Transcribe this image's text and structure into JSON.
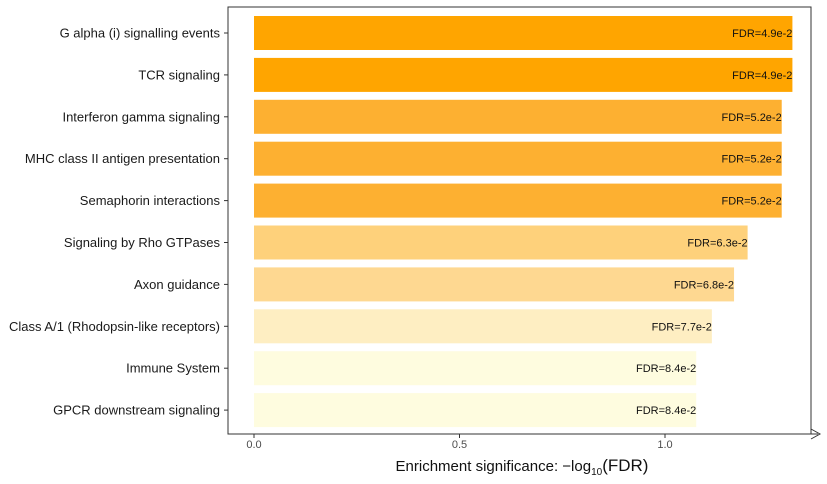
{
  "chart_data": {
    "type": "bar",
    "orientation": "horizontal",
    "categories": [
      "G alpha (i) signalling events",
      "TCR signaling",
      "Interferon gamma signaling",
      "MHC class II antigen presentation",
      "Semaphorin interactions",
      "Signaling by Rho GTPases",
      "Axon guidance",
      "Class A/1 (Rhodopsin-like receptors)",
      "Immune System",
      "GPCR downstream signaling"
    ],
    "values": [
      1.31,
      1.31,
      1.284,
      1.284,
      1.284,
      1.201,
      1.168,
      1.114,
      1.076,
      1.076
    ],
    "data_labels": [
      "FDR=4.9e-2",
      "FDR=4.9e-2",
      "FDR=5.2e-2",
      "FDR=5.2e-2",
      "FDR=5.2e-2",
      "FDR=6.3e-2",
      "FDR=6.8e-2",
      "FDR=7.7e-2",
      "FDR=8.4e-2",
      "FDR=8.4e-2"
    ],
    "colors": [
      "#ffa500",
      "#ffa500",
      "#fdb031",
      "#fdb031",
      "#fdb031",
      "#fed17b",
      "#fed891",
      "#feeec2",
      "#fefcdf",
      "#fefcdf"
    ],
    "xlabel": "Enrichment significance: ",
    "xlabel_math": {
      "prefix": "−log",
      "subscript": "10",
      "arg": "(FDR)"
    },
    "x_ticks": [
      "0.0",
      "0.5",
      "1.0"
    ],
    "x_tick_values": [
      0.0,
      0.5,
      1.0
    ],
    "xlim": [
      0,
      1.31
    ],
    "grid": false,
    "legend": "none"
  }
}
